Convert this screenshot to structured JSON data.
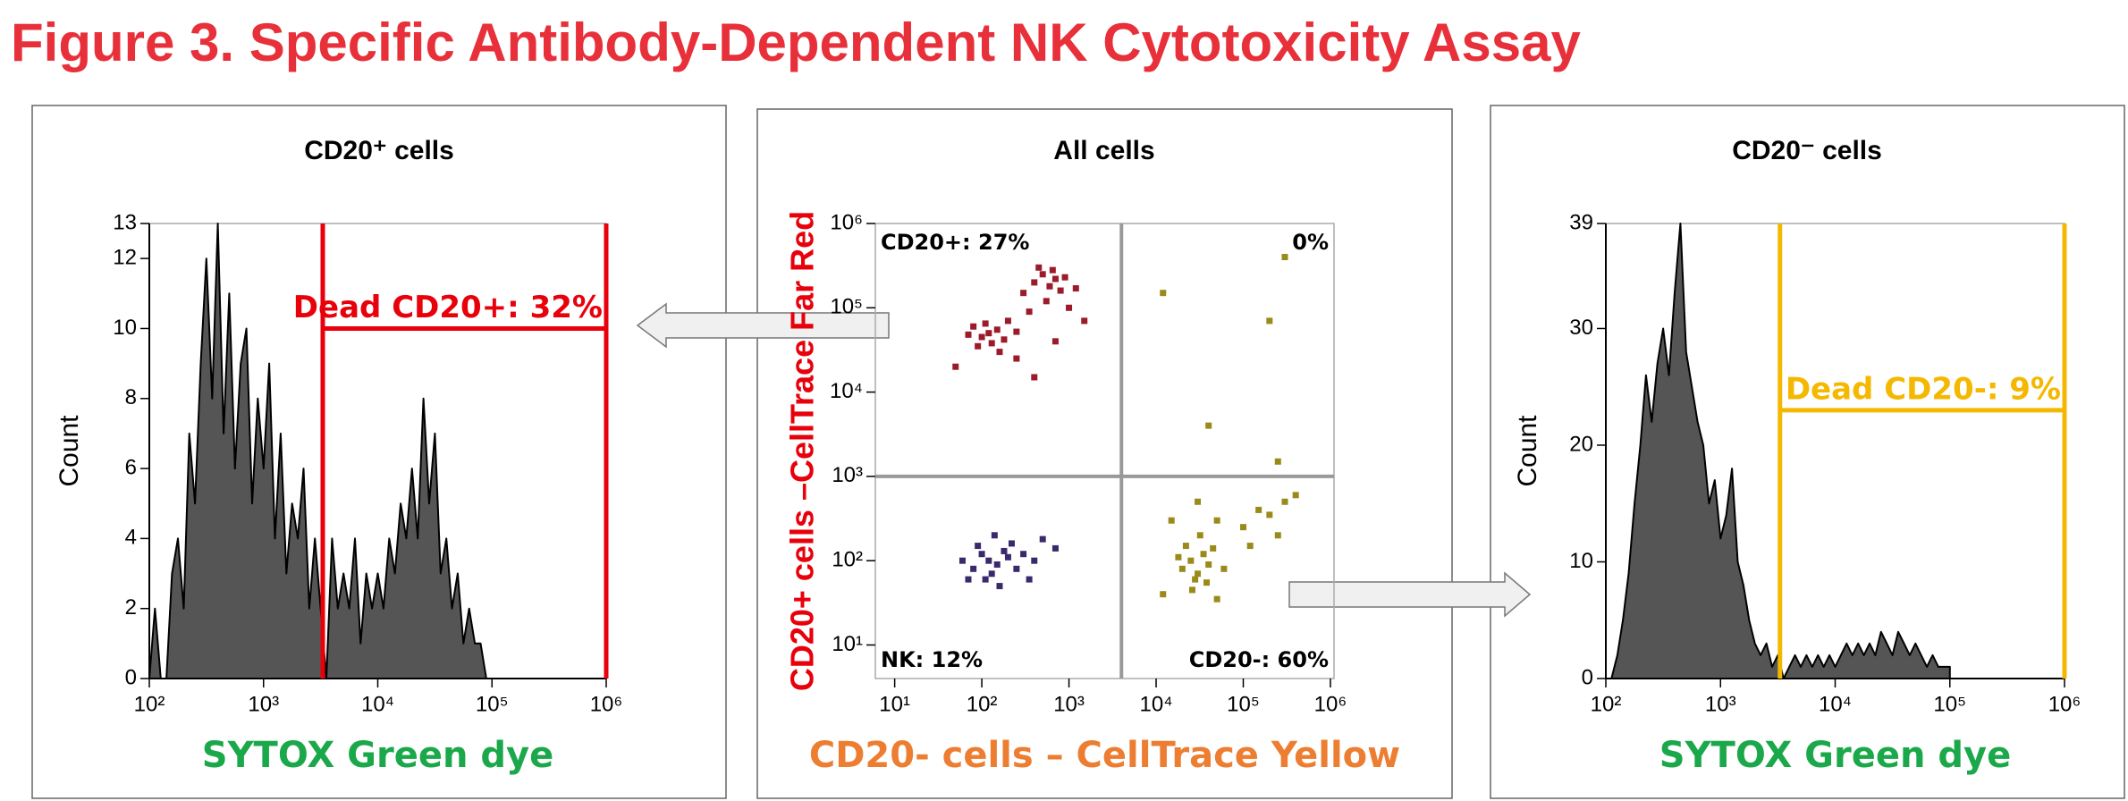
{
  "title": "Figure 3. Specific Antibody-Dependent NK Cytotoxicity Assay",
  "chart_data": [
    {
      "type": "area",
      "title": "CD20⁺ cells",
      "xlabel": "SYTOX Green dye",
      "ylabel": "Count",
      "xlabel_color": "#1aa84a",
      "log_x": true,
      "grid": false,
      "x": [
        100,
        112,
        126,
        141,
        158,
        178,
        200,
        224,
        251,
        282,
        316,
        355,
        398,
        447,
        501,
        562,
        631,
        708,
        794,
        891,
        1000,
        1122,
        1259,
        1413,
        1585,
        1778,
        1995,
        2239,
        2512,
        2818,
        3162,
        3548,
        3981,
        4467,
        5012,
        5623,
        6310,
        7079,
        7943,
        8913,
        10000,
        11220,
        12589,
        14125,
        15849,
        17783,
        19953,
        22387,
        25119,
        28184,
        31623,
        35481,
        39811,
        44668,
        50119,
        56234,
        63096,
        70795,
        79433,
        89125,
        100000
      ],
      "series": [
        {
          "color": "#555555",
          "values": [
            0,
            2,
            0,
            0,
            3,
            4,
            2,
            7,
            5,
            9,
            12,
            8,
            13,
            7,
            11,
            6,
            9,
            10,
            5,
            8,
            6,
            9,
            4,
            7,
            3,
            5,
            4,
            6,
            2,
            4,
            2,
            0,
            4,
            2,
            3,
            2,
            4,
            1,
            3,
            2,
            3,
            2,
            4,
            3,
            5,
            4,
            6,
            4,
            8,
            5,
            7,
            3,
            4,
            2,
            3,
            1,
            2,
            1,
            1,
            0,
            0
          ]
        }
      ],
      "xlim": [
        100,
        1000000
      ],
      "ylim": [
        0,
        13
      ],
      "xticks": [
        {
          "value": 100,
          "label": "10²"
        },
        {
          "value": 1000,
          "label": "10³"
        },
        {
          "value": 10000,
          "label": "10⁴"
        },
        {
          "value": 100000,
          "label": "10⁵"
        },
        {
          "value": 1000000,
          "label": "10⁶"
        }
      ],
      "yticks": [
        0,
        2,
        4,
        6,
        8,
        10,
        12,
        13
      ],
      "gate": {
        "label": "Dead CD20+: 32%",
        "x": [
          3300,
          1000000
        ],
        "y": 10,
        "color": "#e8000b"
      }
    },
    {
      "type": "scatter",
      "title": "All cells",
      "xlabel": "CD20- cells – CellTrace Yellow",
      "ylabel": "CD20+ cells –CellTrace Far Red",
      "xlabel_color": "#ed7d31",
      "ylabel_color": "#e8000b",
      "log_x": true,
      "log_y": true,
      "xlim": [
        6,
        1100000
      ],
      "ylim": [
        4,
        1000000
      ],
      "xticks": [
        {
          "value": 10,
          "label": "10¹"
        },
        {
          "value": 100,
          "label": "10²"
        },
        {
          "value": 1000,
          "label": "10³"
        },
        {
          "value": 10000,
          "label": "10⁴"
        },
        {
          "value": 100000,
          "label": "10⁵"
        },
        {
          "value": 1000000,
          "label": "10⁶"
        }
      ],
      "yticks": [
        {
          "value": 10,
          "label": "10¹"
        },
        {
          "value": 100,
          "label": "10²"
        },
        {
          "value": 1000,
          "label": "10³"
        },
        {
          "value": 10000,
          "label": "10⁴"
        },
        {
          "value": 100000,
          "label": "10⁵"
        },
        {
          "value": 1000000,
          "label": "10⁶"
        }
      ],
      "quadrant": {
        "x": 4000,
        "y": 1000,
        "color": "#999999"
      },
      "quadrant_labels": [
        {
          "text": "CD20+: 27%",
          "corner": "top-left"
        },
        {
          "text": "0%",
          "corner": "top-right"
        },
        {
          "text": "NK: 12%",
          "corner": "bottom-left"
        },
        {
          "text": "CD20-: 60%",
          "corner": "bottom-right"
        }
      ],
      "series": [
        {
          "color": "#9b1b2a",
          "x": [
            80,
            100,
            120,
            150,
            130,
            90,
            200,
            160,
            70,
            180,
            110,
            250,
            300,
            400,
            500,
            600,
            700,
            450,
            800,
            550,
            350,
            1000,
            650,
            900,
            1200,
            250,
            1500,
            50,
            700,
            400
          ],
          "values": [
            60000,
            45000,
            50000,
            55000,
            38000,
            35000,
            70000,
            30000,
            48000,
            42000,
            65000,
            52000,
            150000,
            200000,
            250000,
            180000,
            220000,
            300000,
            160000,
            120000,
            90000,
            100000,
            280000,
            230000,
            170000,
            25000,
            70000,
            20000,
            40000,
            15000
          ]
        },
        {
          "color": "#3b2a6b",
          "x": [
            80,
            100,
            120,
            150,
            200,
            130,
            90,
            250,
            180,
            110,
            300,
            400,
            160,
            60,
            220,
            350,
            500,
            140,
            700,
            70
          ],
          "values": [
            80,
            120,
            100,
            90,
            110,
            70,
            150,
            80,
            130,
            60,
            120,
            100,
            50,
            100,
            160,
            60,
            180,
            200,
            140,
            60
          ]
        },
        {
          "color": "#9a8a1a",
          "x": [
            20000,
            25000,
            30000,
            35000,
            28000,
            22000,
            40000,
            32000,
            18000,
            26000,
            45000,
            38000,
            15000,
            30000,
            50000,
            100000,
            150000,
            200000,
            300000,
            250000,
            400000,
            120000,
            60000,
            12000,
            50000,
            12000,
            300000,
            200000,
            40000,
            250000
          ],
          "values": [
            80,
            100,
            70,
            120,
            60,
            150,
            90,
            200,
            110,
            45,
            140,
            55,
            300,
            500,
            300,
            250,
            400,
            350,
            500,
            200,
            600,
            150,
            80,
            40,
            35,
            150000,
            400000,
            70000,
            4000,
            1500
          ]
        }
      ]
    },
    {
      "type": "area",
      "title": "CD20⁻ cells",
      "xlabel": "SYTOX Green dye",
      "ylabel": "Count",
      "xlabel_color": "#1aa84a",
      "log_x": true,
      "grid": false,
      "x": [
        100,
        112,
        126,
        141,
        158,
        178,
        200,
        224,
        251,
        282,
        316,
        355,
        398,
        447,
        501,
        562,
        631,
        708,
        794,
        891,
        1000,
        1122,
        1259,
        1413,
        1585,
        1778,
        1995,
        2239,
        2512,
        2818,
        3162,
        3548,
        3981,
        4467,
        5012,
        5623,
        6310,
        7079,
        7943,
        8913,
        10000,
        11220,
        12589,
        14125,
        15849,
        17783,
        19953,
        22387,
        25119,
        28184,
        31623,
        35481,
        39811,
        44668,
        50119,
        56234,
        63096,
        70795,
        79433,
        89125,
        100000
      ],
      "series": [
        {
          "color": "#555555",
          "values": [
            0,
            0,
            2,
            5,
            9,
            15,
            20,
            26,
            22,
            27,
            30,
            26,
            33,
            39,
            28,
            25,
            22,
            20,
            15,
            17,
            12,
            14,
            18,
            10,
            8,
            5,
            3,
            2,
            3,
            1,
            2,
            0,
            1,
            2,
            1,
            2,
            1,
            2,
            1,
            2,
            1,
            2,
            3,
            2,
            3,
            2,
            3,
            2,
            4,
            3,
            2,
            4,
            3,
            2,
            3,
            2,
            1,
            2,
            1,
            1,
            1
          ]
        }
      ],
      "xlim": [
        100,
        1000000
      ],
      "ylim": [
        0,
        39
      ],
      "xticks": [
        {
          "value": 100,
          "label": "10²"
        },
        {
          "value": 1000,
          "label": "10³"
        },
        {
          "value": 10000,
          "label": "10⁴"
        },
        {
          "value": 100000,
          "label": "10⁵"
        },
        {
          "value": 1000000,
          "label": "10⁶"
        }
      ],
      "yticks": [
        0,
        10,
        20,
        30,
        39
      ],
      "gate": {
        "label": "Dead CD20-: 9%",
        "x": [
          3300,
          1000000
        ],
        "y": 23,
        "color": "#f5b800"
      }
    }
  ]
}
